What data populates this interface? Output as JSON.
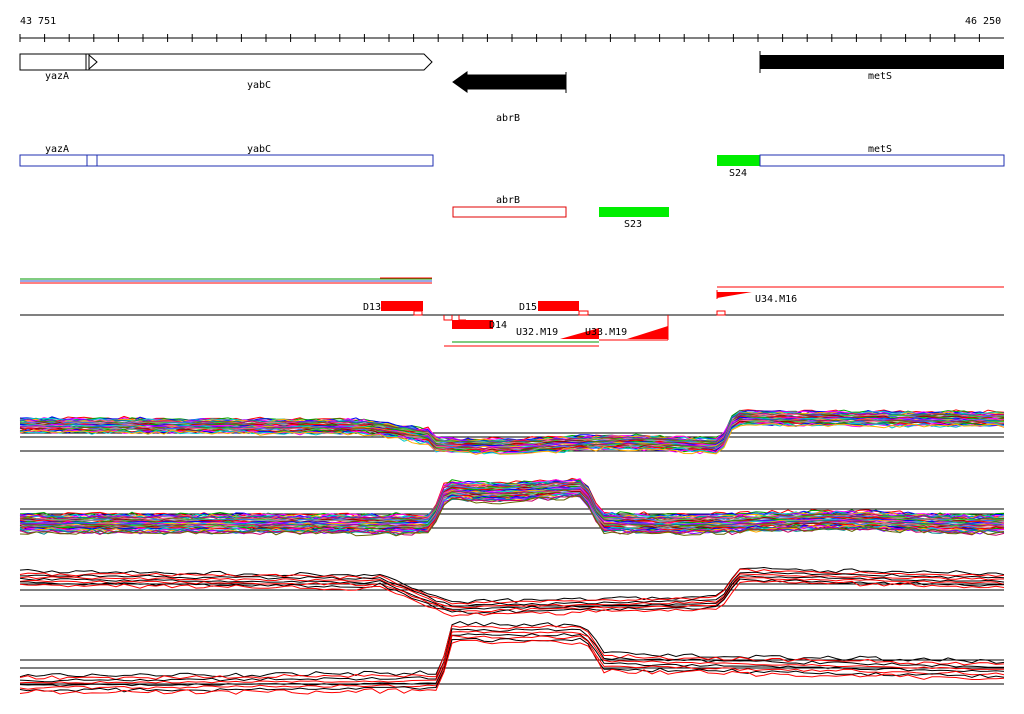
{
  "coord": {
    "start": "43 751",
    "end": "46 250"
  },
  "genes_forward": [
    {
      "name": "yazA",
      "label": "yazA"
    },
    {
      "name": "yabC",
      "label": "yabC"
    }
  ],
  "genes_reverse": [
    {
      "name": "abrB",
      "label": "abrB"
    }
  ],
  "genes_other": [
    {
      "name": "metS",
      "label": "metS"
    }
  ],
  "annotation_boxes": [
    {
      "label": "yazA"
    },
    {
      "label": "yabC"
    },
    {
      "label": "metS"
    },
    {
      "label": "abrB"
    }
  ],
  "green_segments": [
    {
      "label": "S24"
    },
    {
      "label": "S23"
    }
  ],
  "red_segments": [
    {
      "label": "D13"
    },
    {
      "label": "D14"
    },
    {
      "label": "D15"
    }
  ],
  "triangle_features": [
    {
      "label": "U34.M16"
    },
    {
      "label": "U32.M19"
    },
    {
      "label": "U33.M19"
    }
  ],
  "colors": {
    "forward_gene_fill": "#ffffff",
    "reverse_gene_fill": "#000000",
    "annotation_box": "#1f2fb0",
    "abrB_box": "#e00000",
    "green": "#00ee00",
    "red": "#ff0000",
    "baseline": "#000000"
  },
  "panels": [
    {
      "name": "expression-panel-1",
      "trend": "dip"
    },
    {
      "name": "expression-panel-2",
      "trend": "peak"
    },
    {
      "name": "expression-panel-3",
      "trend": "dip"
    },
    {
      "name": "expression-panel-4",
      "trend": "peak"
    }
  ]
}
